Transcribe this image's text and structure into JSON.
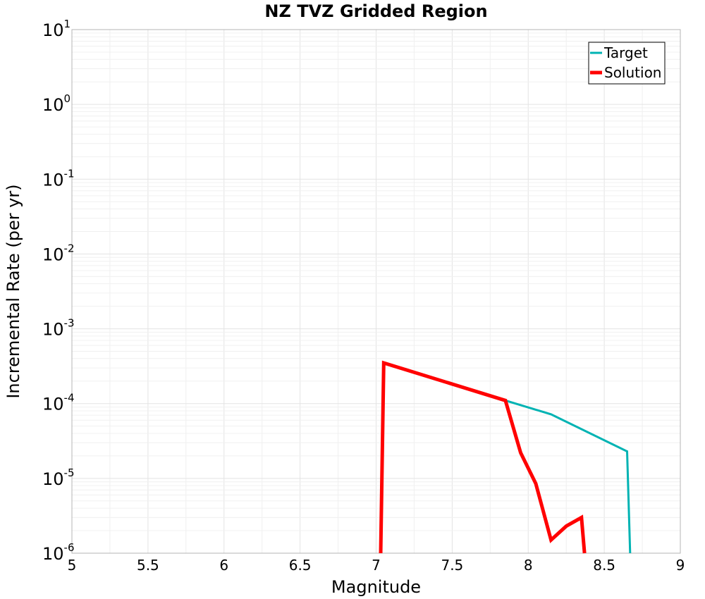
{
  "chart_data": {
    "type": "line",
    "title": "NZ TVZ Gridded Region",
    "xlabel": "Magnitude",
    "ylabel": "Incremental Rate (per yr)",
    "xlim": [
      5,
      9
    ],
    "ylim": [
      1e-06,
      10
    ],
    "yscale": "log",
    "grid": true,
    "legend_position": "top-right",
    "x_ticks": [
      "5",
      "5.5",
      "6",
      "6.5",
      "7",
      "7.5",
      "8",
      "8.5",
      "9"
    ],
    "y_ticks": [
      {
        "base": "10",
        "exp": "1"
      },
      {
        "base": "10",
        "exp": "0"
      },
      {
        "base": "10",
        "exp": "-1"
      },
      {
        "base": "10",
        "exp": "-2"
      },
      {
        "base": "10",
        "exp": "-3"
      },
      {
        "base": "10",
        "exp": "-4"
      },
      {
        "base": "10",
        "exp": "-5"
      },
      {
        "base": "10",
        "exp": "-6"
      }
    ],
    "series": [
      {
        "name": "Target",
        "color": "#00b3b3",
        "line_width": 3,
        "x": [
          7.03,
          7.05,
          7.85,
          8.15,
          8.65,
          8.67
        ],
        "y": [
          1e-06,
          0.00035,
          0.00011,
          7.2e-05,
          2.3e-05,
          1e-06
        ]
      },
      {
        "name": "Solution",
        "color": "#ff0000",
        "line_width": 5,
        "x": [
          7.03,
          7.05,
          7.85,
          7.95,
          8.05,
          8.15,
          8.25,
          8.35,
          8.37
        ],
        "y": [
          1e-06,
          0.00035,
          0.00011,
          2.2e-05,
          8.5e-06,
          1.5e-06,
          2.3e-06,
          3e-06,
          1e-06
        ]
      }
    ]
  }
}
